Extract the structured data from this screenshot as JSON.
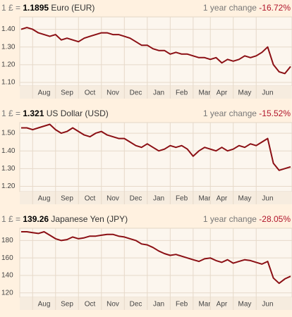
{
  "chart_data": [
    {
      "type": "line",
      "prefix": "1 £ =",
      "rate": "1.1895",
      "currency": "Euro (EUR)",
      "change_label": "1 year change",
      "change": "-16.72%",
      "categories": [
        null,
        null,
        null,
        null,
        "Aug",
        null,
        null,
        null,
        "Sep",
        null,
        null,
        null,
        "Oct",
        null,
        null,
        null,
        "Nov",
        null,
        null,
        null,
        "Dec",
        null,
        null,
        null,
        "Jan",
        null,
        null,
        null,
        "Feb",
        null,
        null,
        null,
        "Mar",
        null,
        null,
        "Apr",
        null,
        null,
        null,
        "May",
        null,
        null,
        null,
        "Jun",
        null,
        null,
        null,
        null
      ],
      "values": [
        1.4,
        1.41,
        1.4,
        1.38,
        1.37,
        1.36,
        1.37,
        1.34,
        1.35,
        1.34,
        1.33,
        1.35,
        1.36,
        1.37,
        1.38,
        1.38,
        1.37,
        1.37,
        1.36,
        1.35,
        1.33,
        1.31,
        1.31,
        1.29,
        1.28,
        1.28,
        1.26,
        1.27,
        1.26,
        1.26,
        1.25,
        1.24,
        1.24,
        1.23,
        1.24,
        1.21,
        1.23,
        1.22,
        1.23,
        1.25,
        1.24,
        1.25,
        1.27,
        1.3,
        1.2,
        1.16,
        1.15,
        1.19
      ],
      "color": "#8b0f14",
      "ylim": [
        1.08,
        1.47
      ],
      "yticks": [
        {
          "value": 1.1,
          "label": "1.10"
        },
        {
          "value": 1.2,
          "label": "1.20"
        },
        {
          "value": 1.3,
          "label": "1.30"
        },
        {
          "value": 1.4,
          "label": "1.40"
        }
      ],
      "grid": true
    },
    {
      "type": "line",
      "prefix": "1 £ =",
      "rate": "1.321",
      "currency": "US Dollar (USD)",
      "change_label": "1 year change",
      "change": "-15.52%",
      "categories": [
        null,
        null,
        null,
        null,
        "Aug",
        null,
        null,
        null,
        "Sep",
        null,
        null,
        null,
        "Oct",
        null,
        null,
        null,
        "Nov",
        null,
        null,
        null,
        "Dec",
        null,
        null,
        null,
        "Jan",
        null,
        null,
        null,
        "Feb",
        null,
        null,
        null,
        "Mar",
        null,
        null,
        "Apr",
        null,
        null,
        null,
        "May",
        null,
        null,
        null,
        "Jun",
        null,
        null,
        null,
        null
      ],
      "values": [
        1.53,
        1.53,
        1.52,
        1.53,
        1.54,
        1.55,
        1.52,
        1.5,
        1.51,
        1.53,
        1.51,
        1.49,
        1.48,
        1.5,
        1.51,
        1.49,
        1.48,
        1.47,
        1.47,
        1.45,
        1.43,
        1.42,
        1.44,
        1.42,
        1.4,
        1.41,
        1.43,
        1.42,
        1.43,
        1.41,
        1.37,
        1.4,
        1.42,
        1.41,
        1.4,
        1.42,
        1.4,
        1.41,
        1.43,
        1.42,
        1.44,
        1.43,
        1.45,
        1.47,
        1.33,
        1.29,
        1.3,
        1.31
      ],
      "color": "#8b0f14",
      "ylim": [
        1.17,
        1.56
      ],
      "yticks": [
        {
          "value": 1.2,
          "label": "1.20"
        },
        {
          "value": 1.3,
          "label": "1.30"
        },
        {
          "value": 1.4,
          "label": "1.40"
        },
        {
          "value": 1.5,
          "label": "1.50"
        }
      ],
      "grid": true
    },
    {
      "type": "line",
      "prefix": "1 £ =",
      "rate": "139.26",
      "currency": "Japanese Yen (JPY)",
      "change_label": "1 year change",
      "change": "-28.05%",
      "categories": [
        null,
        null,
        null,
        null,
        "Aug",
        null,
        null,
        null,
        "Sep",
        null,
        null,
        null,
        "Oct",
        null,
        null,
        null,
        "Nov",
        null,
        null,
        null,
        "Dec",
        null,
        null,
        null,
        "Jan",
        null,
        null,
        null,
        "Feb",
        null,
        null,
        null,
        "Mar",
        null,
        null,
        "Apr",
        null,
        null,
        null,
        "May",
        null,
        null,
        null,
        "Jun",
        null,
        null,
        null,
        null
      ],
      "values": [
        190,
        190,
        189,
        188,
        190,
        186,
        182,
        180,
        181,
        184,
        182,
        183,
        185,
        185,
        186,
        187,
        187,
        185,
        184,
        182,
        180,
        176,
        175,
        172,
        168,
        165,
        163,
        164,
        162,
        160,
        158,
        156,
        159,
        160,
        157,
        155,
        158,
        154,
        156,
        158,
        157,
        155,
        153,
        156,
        137,
        131,
        136,
        139
      ],
      "color": "#8b0f14",
      "ylim": [
        115,
        194
      ],
      "yticks": [
        120,
        140,
        160,
        180
      ],
      "grid": true
    }
  ]
}
